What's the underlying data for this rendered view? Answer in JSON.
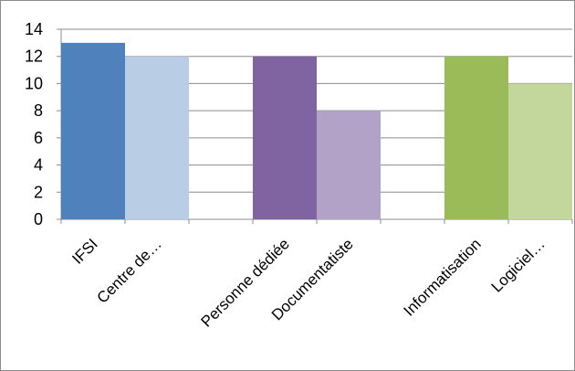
{
  "chart_data": {
    "type": "bar",
    "title": "",
    "xlabel": "",
    "ylabel": "",
    "ylim": [
      0,
      14
    ],
    "yticks": [
      0,
      2,
      4,
      6,
      8,
      10,
      12,
      14
    ],
    "grid": true,
    "legend": "none",
    "categories": [
      "IFSI",
      "Centre de…",
      "",
      "Personne dédiée",
      "Documentatiste",
      "",
      "Informatisation",
      "Logiciel…"
    ],
    "values": [
      13,
      12,
      null,
      12,
      8,
      null,
      12,
      10
    ],
    "colors": [
      "#4f81bd",
      "#b9cde5",
      null,
      "#8064a2",
      "#b3a2c7",
      null,
      "#9bbb59",
      "#c3d69b"
    ]
  }
}
